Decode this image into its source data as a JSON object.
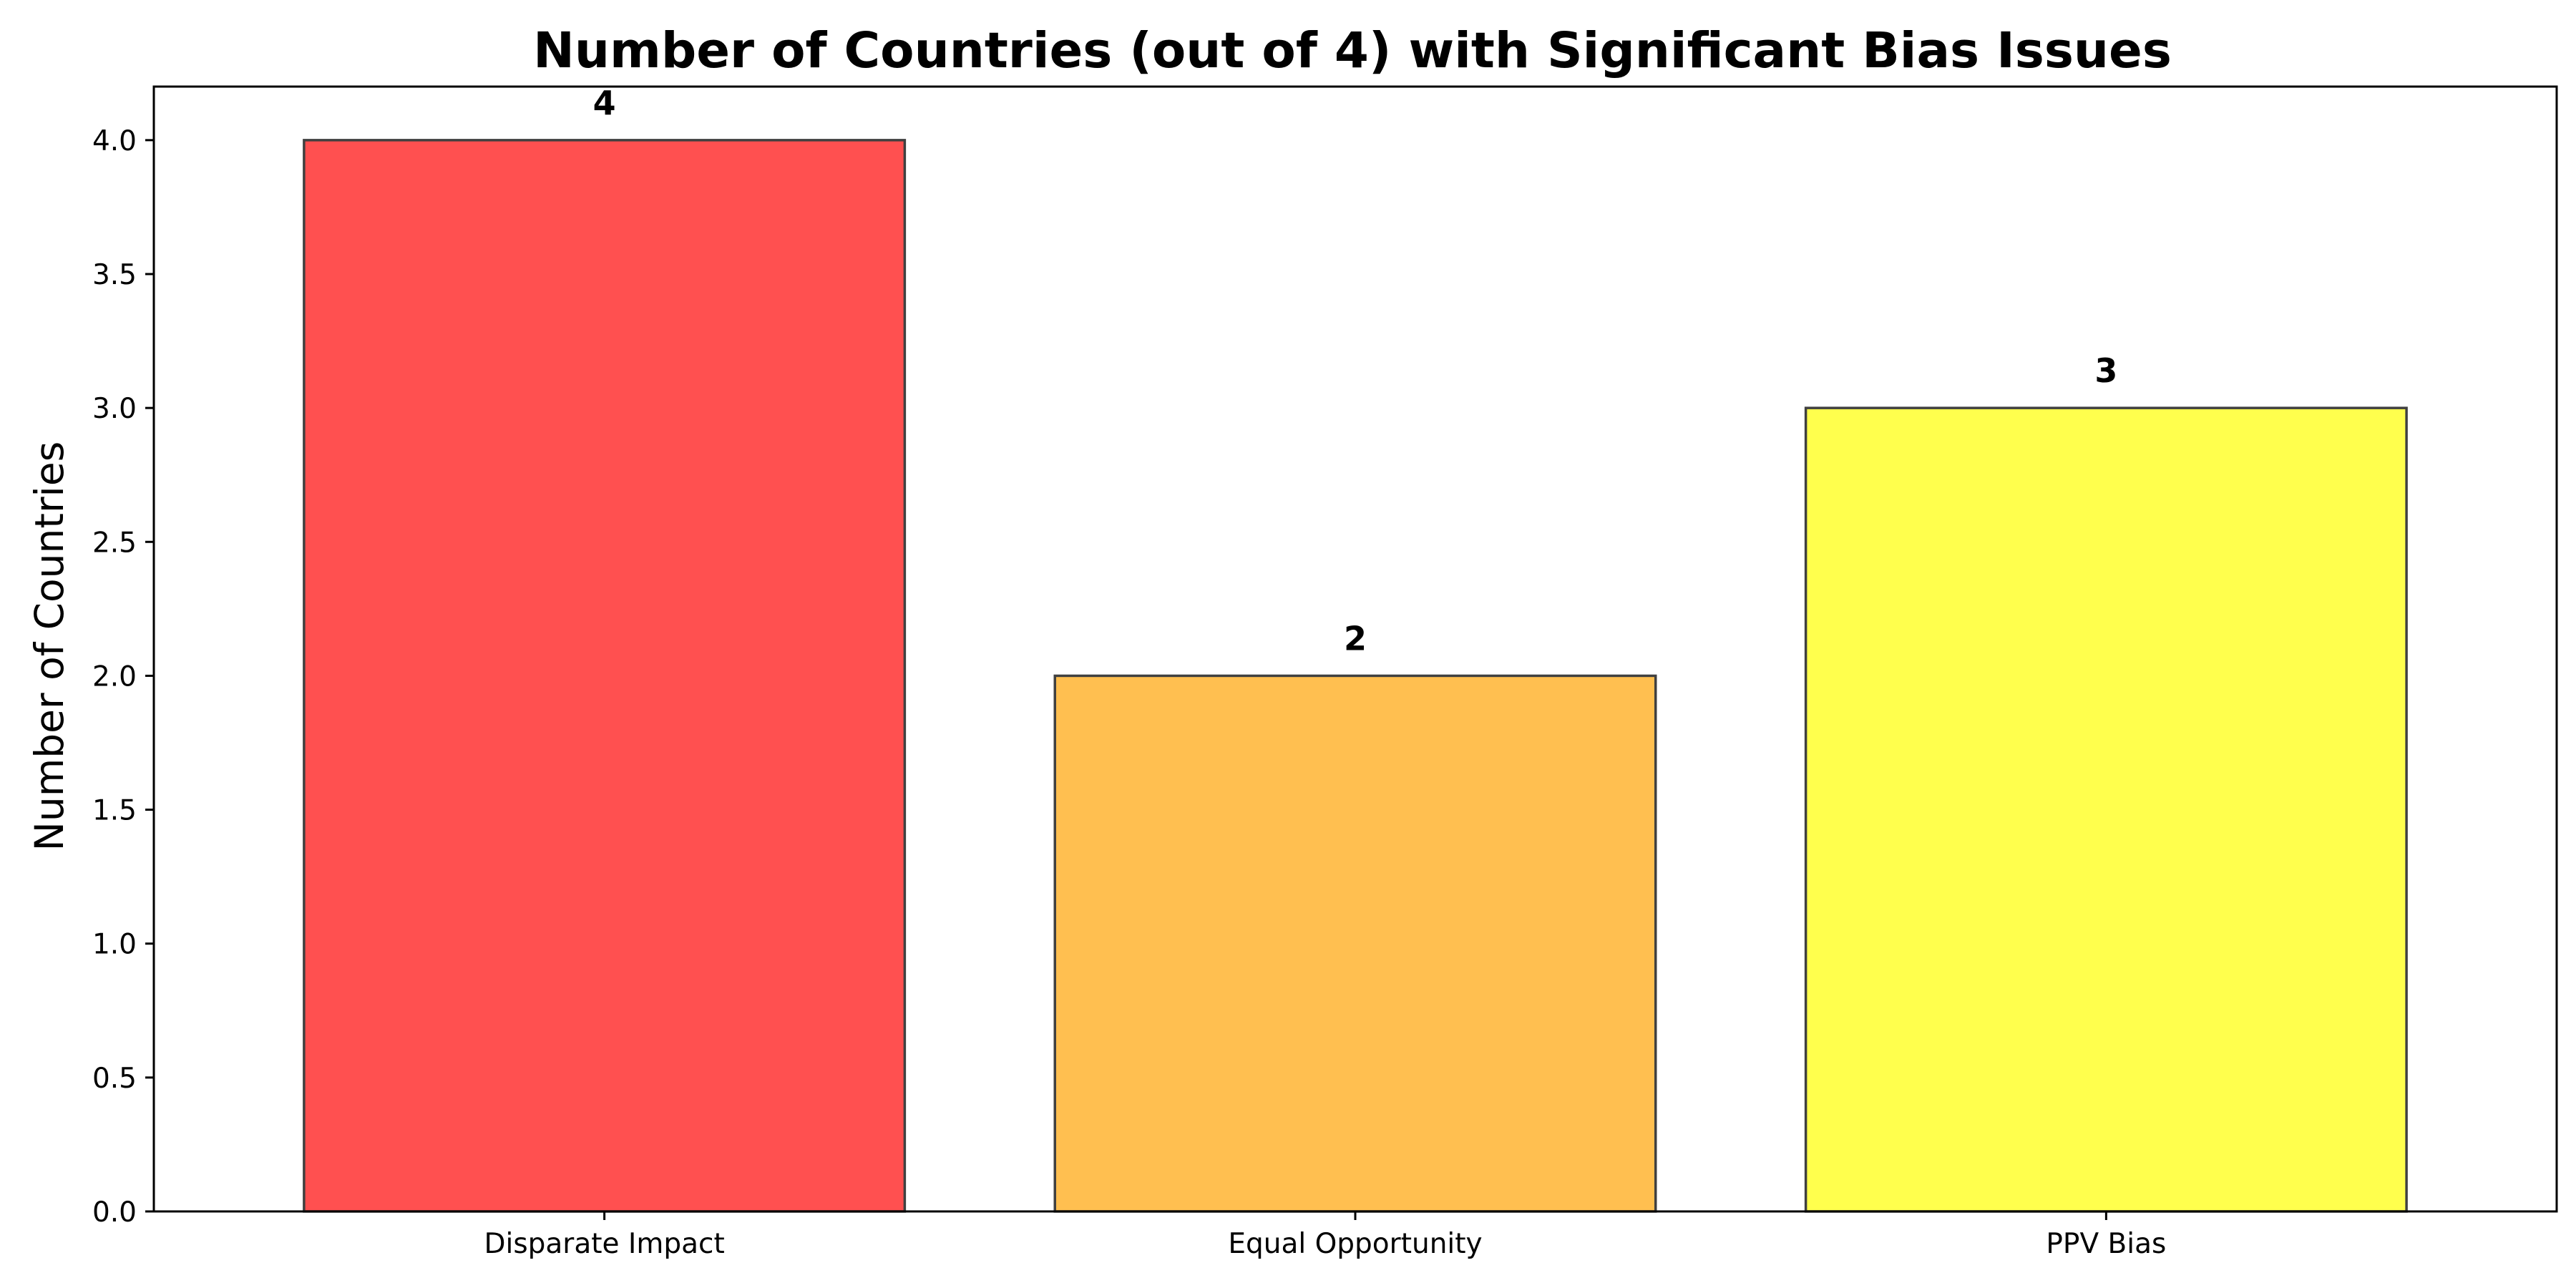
{
  "chart_data": {
    "type": "bar",
    "title": "Number of Countries (out of 4) with Significant Bias Issues",
    "xlabel": "",
    "ylabel": "Number of Countries",
    "categories": [
      "Disparate Impact",
      "Equal Opportunity",
      "PPV Bias"
    ],
    "values": [
      4,
      2,
      3
    ],
    "data_labels": [
      "4",
      "2",
      "3"
    ],
    "colors": [
      "#ff5050",
      "#ffbf50",
      "#ffff4d"
    ],
    "edge_color": "#404040",
    "ylim": [
      0,
      4.2
    ],
    "yticks": [
      0.0,
      0.5,
      1.0,
      1.5,
      2.0,
      2.5,
      3.0,
      3.5,
      4.0
    ],
    "ytick_labels": [
      "0.0",
      "0.5",
      "1.0",
      "1.5",
      "2.0",
      "2.5",
      "3.0",
      "3.5",
      "4.0"
    ],
    "grid": false,
    "legend": "none"
  }
}
